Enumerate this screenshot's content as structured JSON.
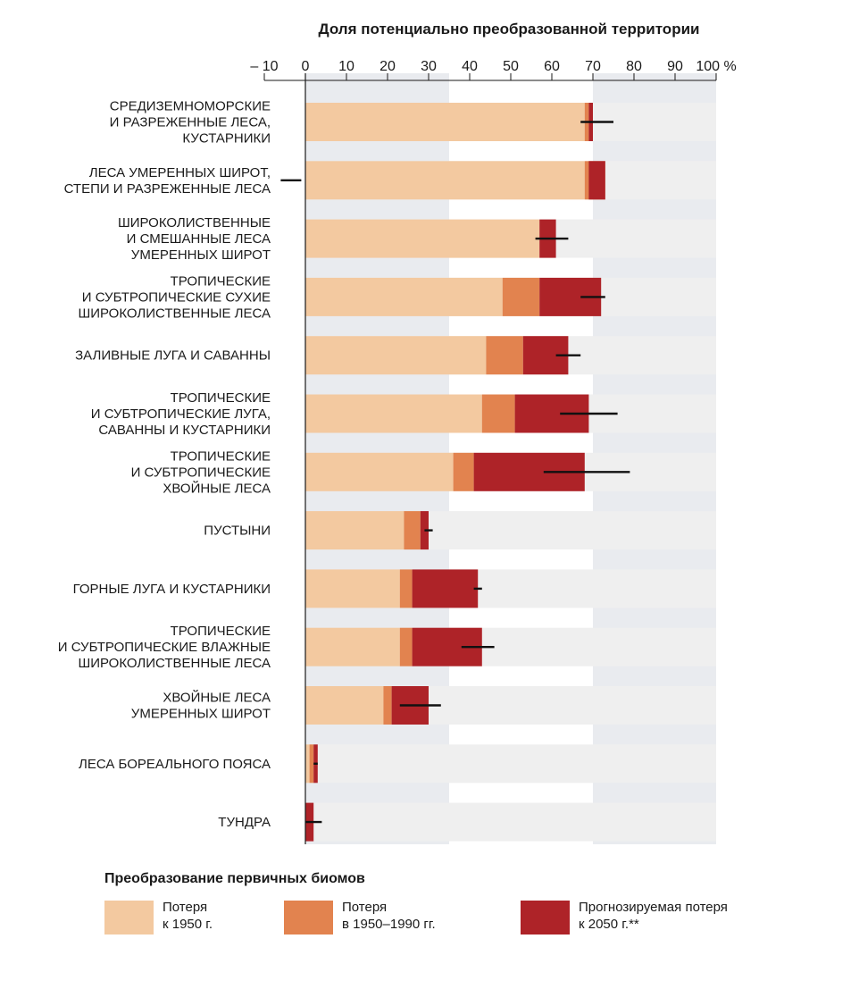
{
  "chart_data": {
    "type": "bar",
    "orientation": "horizontal",
    "stacked": true,
    "title": "Доля потенциально преобразованной территории",
    "xlim": [
      -10,
      100
    ],
    "x_ticks": [
      -10,
      0,
      10,
      20,
      30,
      40,
      50,
      60,
      70,
      80,
      90,
      100
    ],
    "x_tick_labels": [
      "– 10",
      "0",
      "10",
      "20",
      "30",
      "40",
      "50",
      "60",
      "70",
      "80",
      "90",
      "100 %"
    ],
    "categories": [
      [
        "СРЕДИЗЕМНОМОРСКИЕ",
        "И РАЗРЕЖЕННЫЕ ЛЕСА,",
        "КУСТАРНИКИ"
      ],
      [
        "ЛЕСА УМЕРЕННЫХ ШИРОТ,",
        "СТЕПИ И РАЗРЕЖЕННЫЕ ЛЕСА"
      ],
      [
        "ШИРОКОЛИСТВЕННЫЕ",
        "И СМЕШАННЫЕ ЛЕСА",
        "УМЕРЕННЫХ ШИРОТ"
      ],
      [
        "ТРОПИЧЕСКИЕ",
        "И СУБТРОПИЧЕСКИЕ СУХИЕ",
        "ШИРОКОЛИСТВЕННЫЕ ЛЕСА"
      ],
      [
        "ЗАЛИВНЫЕ ЛУГА И САВАННЫ"
      ],
      [
        "ТРОПИЧЕСКИЕ",
        "И СУБТРОПИЧЕСКИЕ ЛУГА,",
        "САВАННЫ И КУСТАРНИКИ"
      ],
      [
        "ТРОПИЧЕСКИЕ",
        "И СУБТРОПИЧЕСКИЕ",
        "ХВОЙНЫЕ ЛЕСА"
      ],
      [
        "ПУСТЫНИ"
      ],
      [
        "ГОРНЫЕ ЛУГА И КУСТАРНИКИ"
      ],
      [
        "ТРОПИЧЕСКИЕ",
        "И СУБТРОПИЧЕСКИЕ ВЛАЖНЫЕ",
        "ШИРОКОЛИСТВЕННЫЕ ЛЕСА"
      ],
      [
        "ХВОЙНЫЕ ЛЕСА",
        "УМЕРЕННЫХ ШИРОТ"
      ],
      [
        "ЛЕСА БОРЕАЛЬНОГО ПОЯСА"
      ],
      [
        "ТУНДРА"
      ]
    ],
    "series": [
      {
        "name": "Потеря к 1950 г.",
        "color": "#f3c9a0",
        "values": [
          68,
          68,
          57,
          48,
          44,
          43,
          36,
          24,
          23,
          23,
          19,
          1,
          0
        ]
      },
      {
        "name": "Потеря в 1950–1990 гг.",
        "color": "#e2834f",
        "values": [
          1,
          5,
          0,
          9,
          9,
          8,
          5,
          4,
          3,
          3,
          2,
          1,
          0
        ]
      },
      {
        "name": "Прогнозируемая потеря к 2050 г.**",
        "color": "#ae2328",
        "values": [
          1,
          -4,
          4,
          15,
          11,
          18,
          27,
          2,
          16,
          17,
          9,
          1,
          2
        ]
      }
    ],
    "error_bars": [
      [
        67,
        75
      ],
      [
        -6,
        -1
      ],
      [
        56,
        64
      ],
      [
        67,
        73
      ],
      [
        61,
        67
      ],
      [
        62,
        76
      ],
      [
        58,
        79
      ],
      [
        29,
        31
      ],
      [
        41,
        43
      ],
      [
        38,
        46
      ],
      [
        23,
        33
      ],
      [
        2,
        3
      ],
      [
        0,
        4
      ]
    ],
    "legend": {
      "title": "Преобразование первичных биомов",
      "position": "bottom",
      "items": [
        {
          "lines": [
            "Потеря",
            "к 1950 г."
          ],
          "color": "#f3c9a0"
        },
        {
          "lines": [
            "Потеря",
            "в 1950–1990 гг."
          ],
          "color": "#e2834f"
        },
        {
          "lines": [
            "Прогнозируемая потеря",
            "к 2050 г.**"
          ],
          "color": "#ae2328"
        }
      ]
    },
    "colors": {
      "track": "#efefef",
      "band": "#e9ebef",
      "axis": "#1a1a1a",
      "error_bar": "#111111"
    }
  }
}
